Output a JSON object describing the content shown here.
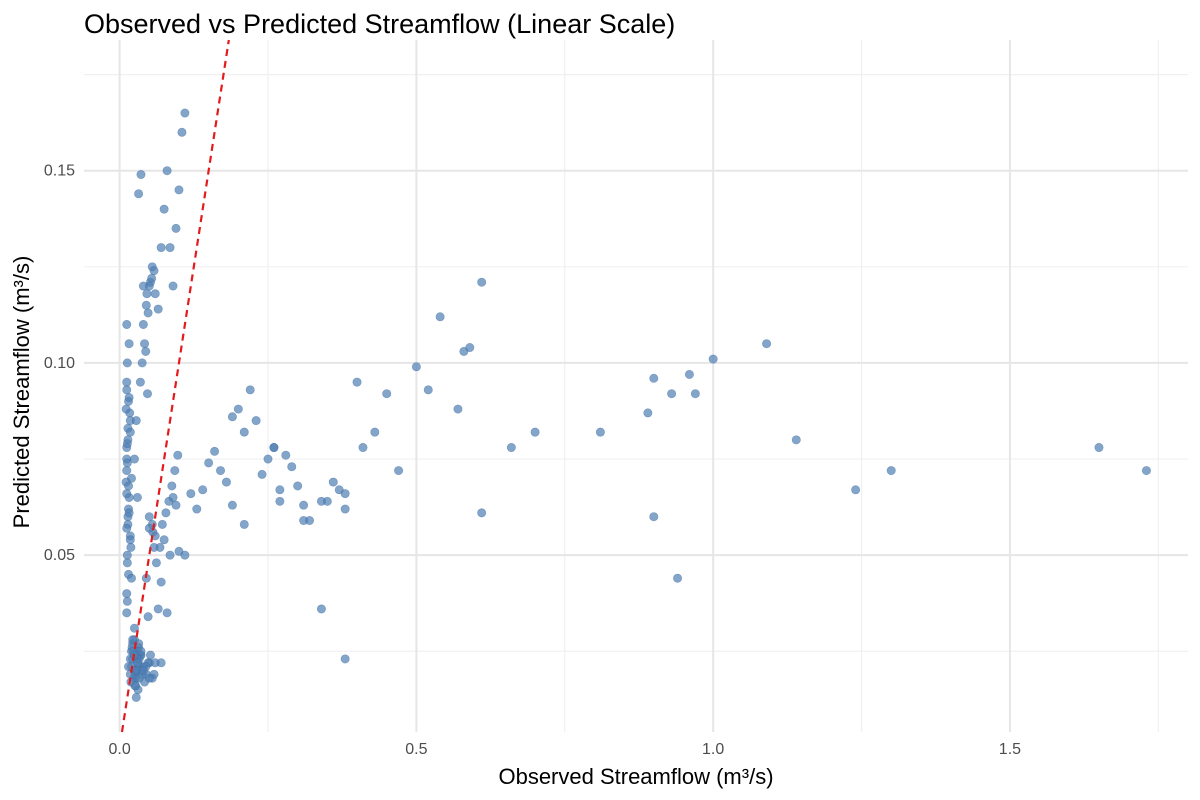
{
  "chart_data": {
    "type": "scatter",
    "title": "Observed vs Predicted Streamflow (Linear Scale)",
    "xlabel": "Observed Streamflow (m³/s)",
    "ylabel": "Predicted Streamflow (m³/s)",
    "xlim": [
      -0.06,
      1.8
    ],
    "ylim": [
      0.004,
      0.184
    ],
    "x_ticks": [
      0.0,
      0.5,
      1.0,
      1.5
    ],
    "x_tick_labels": [
      "0.0",
      "0.5",
      "1.0",
      "1.5"
    ],
    "y_ticks": [
      0.05,
      0.1,
      0.15
    ],
    "y_tick_labels": [
      "0.05",
      "0.10",
      "0.15"
    ],
    "grid": true,
    "point_color": "#4f7fb4",
    "reference_line": {
      "type": "identity",
      "color": "#e41a1c",
      "style": "dashed"
    },
    "series": [
      {
        "x": [
          0.02,
          0.025,
          0.03,
          0.028,
          0.035,
          0.022,
          0.04,
          0.018,
          0.045,
          0.032,
          0.027,
          0.038,
          0.05,
          0.024,
          0.03,
          0.02,
          0.033,
          0.042,
          0.026,
          0.036,
          0.029,
          0.048,
          0.055,
          0.021,
          0.031,
          0.025,
          0.028,
          0.034,
          0.038,
          0.06,
          0.019,
          0.023,
          0.027,
          0.03,
          0.033,
          0.044,
          0.052,
          0.058,
          0.07,
          0.026,
          0.032,
          0.04,
          0.05,
          0.022,
          0.036,
          0.015,
          0.018,
          0.025,
          0.03,
          0.028,
          0.012,
          0.012,
          0.015,
          0.013,
          0.018,
          0.014,
          0.016,
          0.02,
          0.012,
          0.014,
          0.018,
          0.015,
          0.012,
          0.013,
          0.016,
          0.012,
          0.015,
          0.014,
          0.018,
          0.013,
          0.02,
          0.013,
          0.019,
          0.012,
          0.016,
          0.012,
          0.011,
          0.013,
          0.012,
          0.014,
          0.017,
          0.016,
          0.012,
          0.011,
          0.018,
          0.013,
          0.012,
          0.015,
          0.025,
          0.022,
          0.03,
          0.025,
          0.028,
          0.035,
          0.04,
          0.045,
          0.05,
          0.055,
          0.06,
          0.038,
          0.042,
          0.048,
          0.052,
          0.058,
          0.065,
          0.07,
          0.075,
          0.08,
          0.085,
          0.09,
          0.095,
          0.1,
          0.105,
          0.11,
          0.032,
          0.036,
          0.044,
          0.047,
          0.056,
          0.062,
          0.068,
          0.072,
          0.078,
          0.083,
          0.088,
          0.093,
          0.098,
          0.04,
          0.046,
          0.054,
          0.05,
          0.055,
          0.06,
          0.058,
          0.05,
          0.045,
          0.048,
          0.065,
          0.07,
          0.08,
          0.075,
          0.085,
          0.09,
          0.095,
          0.1,
          0.11,
          0.12,
          0.13,
          0.14,
          0.15,
          0.16,
          0.17,
          0.18,
          0.19,
          0.2,
          0.21,
          0.22,
          0.23,
          0.24,
          0.25,
          0.26,
          0.27,
          0.28,
          0.29,
          0.3,
          0.31,
          0.32,
          0.35,
          0.37,
          0.38,
          0.38,
          0.4,
          0.41,
          0.43,
          0.45,
          0.47,
          0.5,
          0.52,
          0.54,
          0.57,
          0.58,
          0.59,
          0.61,
          0.61,
          0.66,
          0.7,
          0.81,
          0.89,
          0.9,
          0.9,
          0.93,
          0.94,
          0.96,
          0.97,
          1.0,
          1.09,
          1.14,
          1.24,
          1.3,
          1.65,
          1.73,
          0.34,
          0.34,
          0.31,
          0.26,
          0.27,
          0.36,
          0.38,
          0.19,
          0.21
        ],
        "y": [
          0.025,
          0.02,
          0.022,
          0.018,
          0.024,
          0.027,
          0.021,
          0.023,
          0.019,
          0.026,
          0.016,
          0.02,
          0.022,
          0.018,
          0.025,
          0.021,
          0.023,
          0.017,
          0.019,
          0.024,
          0.02,
          0.022,
          0.018,
          0.026,
          0.015,
          0.028,
          0.024,
          0.021,
          0.019,
          0.022,
          0.017,
          0.025,
          0.02,
          0.023,
          0.018,
          0.021,
          0.024,
          0.019,
          0.022,
          0.016,
          0.027,
          0.02,
          0.018,
          0.023,
          0.025,
          0.021,
          0.019,
          0.024,
          0.022,
          0.013,
          0.035,
          0.04,
          0.045,
          0.05,
          0.055,
          0.06,
          0.065,
          0.07,
          0.075,
          0.08,
          0.085,
          0.09,
          0.095,
          0.1,
          0.105,
          0.11,
          0.062,
          0.058,
          0.054,
          0.048,
          0.044,
          0.038,
          0.052,
          0.057,
          0.061,
          0.066,
          0.069,
          0.074,
          0.078,
          0.083,
          0.087,
          0.091,
          0.093,
          0.088,
          0.082,
          0.079,
          0.072,
          0.068,
          0.031,
          0.028,
          0.065,
          0.075,
          0.085,
          0.095,
          0.11,
          0.115,
          0.12,
          0.125,
          0.118,
          0.1,
          0.105,
          0.113,
          0.121,
          0.124,
          0.114,
          0.13,
          0.14,
          0.15,
          0.13,
          0.12,
          0.135,
          0.145,
          0.16,
          0.165,
          0.144,
          0.149,
          0.103,
          0.092,
          0.056,
          0.048,
          0.052,
          0.058,
          0.061,
          0.064,
          0.068,
          0.072,
          0.076,
          0.12,
          0.118,
          0.122,
          0.06,
          0.058,
          0.055,
          0.052,
          0.057,
          0.044,
          0.034,
          0.036,
          0.043,
          0.035,
          0.054,
          0.05,
          0.065,
          0.063,
          0.051,
          0.05,
          0.066,
          0.062,
          0.067,
          0.074,
          0.077,
          0.072,
          0.069,
          0.086,
          0.088,
          0.082,
          0.093,
          0.085,
          0.071,
          0.075,
          0.078,
          0.067,
          0.076,
          0.073,
          0.068,
          0.063,
          0.059,
          0.064,
          0.067,
          0.066,
          0.062,
          0.095,
          0.078,
          0.082,
          0.092,
          0.072,
          0.099,
          0.093,
          0.112,
          0.088,
          0.103,
          0.104,
          0.121,
          0.061,
          0.078,
          0.082,
          0.082,
          0.087,
          0.096,
          0.06,
          0.092,
          0.044,
          0.097,
          0.092,
          0.101,
          0.105,
          0.08,
          0.067,
          0.072,
          0.078,
          0.072,
          0.036,
          0.064,
          0.059,
          0.078,
          0.064,
          0.069,
          0.023,
          0.063,
          0.058
        ]
      }
    ]
  }
}
